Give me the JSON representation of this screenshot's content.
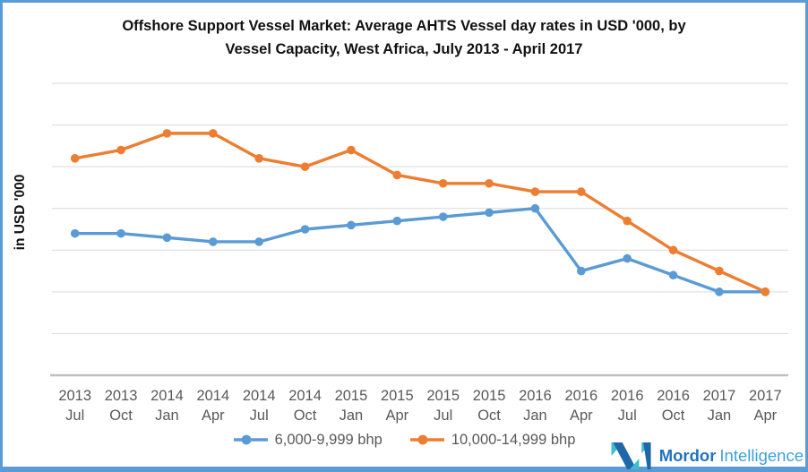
{
  "title": {
    "line1": "Offshore Support Vessel Market: Average AHTS Vessel day rates in USD '000, by",
    "line2": "Vessel Capacity, West Africa, July 2013 - April 2017"
  },
  "chart_data": {
    "type": "line",
    "title": "Offshore Support Vessel Market: Average AHTS Vessel day rates in USD '000, by Vessel Capacity, West Africa, July 2013 - April 2017",
    "ylabel": "in USD '000",
    "xlabel": "",
    "x_tick_labels": [
      "2013 Jul",
      "2013 Oct",
      "2014 Jan",
      "2014 Apr",
      "2014 Jul",
      "2014 Oct",
      "2015 Jan",
      "2015 Apr",
      "2015 Jul",
      "2015 Oct",
      "2016 Jan",
      "2016 Apr",
      "2016 Jul",
      "2016 Oct",
      "2017 Jan",
      "2017 Apr"
    ],
    "series": [
      {
        "name": "6,000-9,999 bhp",
        "color": "#5B9BD5",
        "values": [
          17,
          17,
          16.5,
          16,
          16,
          17.5,
          18,
          18.5,
          19,
          19.5,
          20,
          12.5,
          14,
          12,
          10,
          10
        ]
      },
      {
        "name": "10,000-14,999 bhp",
        "color": "#ED7D31",
        "values": [
          26,
          27,
          29,
          29,
          26,
          25,
          27,
          24,
          23,
          23,
          22,
          22,
          18.5,
          15,
          12.5,
          10
        ]
      }
    ],
    "ylim": [
      0,
      35
    ],
    "y_gridline_step": 5,
    "y_tick_labels_visible": false,
    "grid": true,
    "legend_position": "bottom",
    "gridline_color": "#D9D9D9",
    "axis_line_color": "#BFBFBF",
    "axis_text_color": "#595959"
  },
  "branding": {
    "name_primary": "Mordor",
    "name_secondary": "Intelligence",
    "primary_color": "#2173BC",
    "secondary_color": "#3FA0DC",
    "icon_teal": "#3FBECD",
    "icon_blue": "#2067AA"
  },
  "frame": {
    "border_color": "#5B9BD5",
    "bottom_bar_color": "#5B9BD5"
  }
}
